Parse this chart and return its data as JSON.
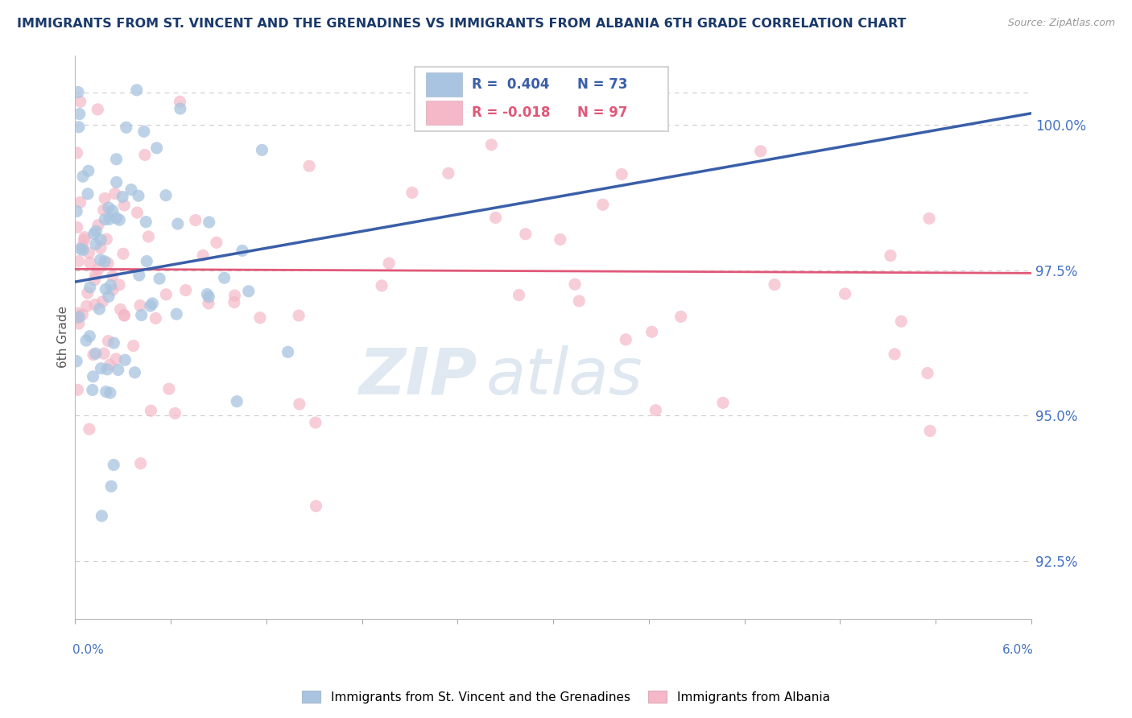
{
  "title": "IMMIGRANTS FROM ST. VINCENT AND THE GRENADINES VS IMMIGRANTS FROM ALBANIA 6TH GRADE CORRELATION CHART",
  "source": "Source: ZipAtlas.com",
  "ylabel": "6th Grade",
  "right_yticks": [
    92.5,
    95.0,
    97.5,
    100.0
  ],
  "right_ytick_labels": [
    "92.5%",
    "95.0%",
    "97.5%",
    "100.0%"
  ],
  "xmin": 0.0,
  "xmax": 6.0,
  "ymin": 91.5,
  "ymax": 101.2,
  "blue_R": 0.404,
  "blue_N": 73,
  "pink_R": -0.018,
  "pink_N": 97,
  "blue_color": "#a8c4e0",
  "pink_color": "#f4b8c8",
  "blue_line_color": "#3a5fa8",
  "pink_line_color": "#e05878",
  "legend_blue_label": "Immigrants from St. Vincent and the Grenadines",
  "legend_pink_label": "Immigrants from Albania",
  "watermark_zip": "ZIP",
  "watermark_atlas": "atlas",
  "title_color": "#1a3a6b",
  "axis_label_color": "#4472c4",
  "background_color": "#ffffff",
  "blue_line_x0": 0.0,
  "blue_line_y0": 97.3,
  "blue_line_x1": 6.0,
  "blue_line_y1": 100.2,
  "pink_line_x0": 0.0,
  "pink_line_y0": 97.52,
  "pink_line_x1": 6.0,
  "pink_line_y1": 97.45
}
